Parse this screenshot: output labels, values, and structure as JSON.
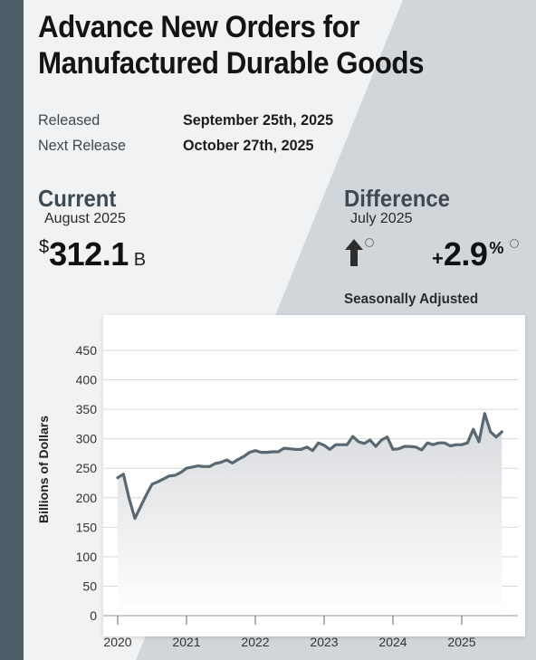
{
  "header": {
    "title_line1": "Advance New Orders for",
    "title_line2": "Manufactured Durable Goods"
  },
  "release": {
    "released_label": "Released",
    "released_value": "September 25th, 2025",
    "next_label": "Next Release",
    "next_value": "October 27th, 2025"
  },
  "current": {
    "heading": "Current",
    "period": "August 2025",
    "currency": "$",
    "value": "312.1",
    "unit": "B"
  },
  "difference": {
    "heading": "Difference",
    "period": "July 2025",
    "direction_icon": "arrow-up-icon",
    "sign": "+",
    "value": "2.9",
    "unit": "%"
  },
  "note": "Seasonally Adjusted",
  "colors": {
    "accent": "#4d5c66",
    "line": "#5a6872",
    "fill_top": "#d7dadd",
    "grid": "#d9d9d9"
  },
  "chart_data": {
    "type": "area",
    "title": "",
    "xlabel": "",
    "ylabel": "Billions of Dollars",
    "ylim": [
      0,
      450
    ],
    "yticks": [
      "0",
      "50",
      "100",
      "150",
      "200",
      "250",
      "300",
      "350",
      "400",
      "450"
    ],
    "xticks": [
      "2020",
      "2021",
      "2022",
      "2023",
      "2024",
      "2025"
    ],
    "xlim": [
      "2020-01",
      "2025-08"
    ],
    "grid": true,
    "series": [
      {
        "x": [
          "2020-01",
          "2020-02",
          "2020-03",
          "2020-04",
          "2020-05",
          "2020-06",
          "2020-07",
          "2020-08",
          "2020-09",
          "2020-10",
          "2020-11",
          "2020-12",
          "2021-01",
          "2021-02",
          "2021-03",
          "2021-04",
          "2021-05",
          "2021-06",
          "2021-07",
          "2021-08",
          "2021-09",
          "2021-10",
          "2021-11",
          "2021-12",
          "2022-01",
          "2022-02",
          "2022-03",
          "2022-04",
          "2022-05",
          "2022-06",
          "2022-07",
          "2022-08",
          "2022-09",
          "2022-10",
          "2022-11",
          "2022-12",
          "2023-01",
          "2023-02",
          "2023-03",
          "2023-04",
          "2023-05",
          "2023-06",
          "2023-07",
          "2023-08",
          "2023-09",
          "2023-10",
          "2023-11",
          "2023-12",
          "2024-01",
          "2024-02",
          "2024-03",
          "2024-04",
          "2024-05",
          "2024-06",
          "2024-07",
          "2024-08",
          "2024-09",
          "2024-10",
          "2024-11",
          "2024-12",
          "2025-01",
          "2025-02",
          "2025-03",
          "2025-04",
          "2025-05",
          "2025-06",
          "2025-07",
          "2025-08"
        ],
        "values": [
          234,
          240,
          198,
          165,
          185,
          205,
          223,
          227,
          232,
          237,
          238,
          243,
          250,
          252,
          254,
          253,
          253,
          258,
          260,
          264,
          259,
          265,
          270,
          277,
          280,
          277,
          277,
          278,
          278,
          284,
          283,
          282,
          282,
          286,
          280,
          293,
          289,
          282,
          290,
          290,
          290,
          304,
          295,
          292,
          298,
          287,
          298,
          303,
          282,
          283,
          287,
          287,
          286,
          281,
          293,
          290,
          293,
          293,
          288,
          290,
          290,
          293,
          316,
          295,
          343,
          312,
          303,
          312
        ]
      }
    ]
  }
}
